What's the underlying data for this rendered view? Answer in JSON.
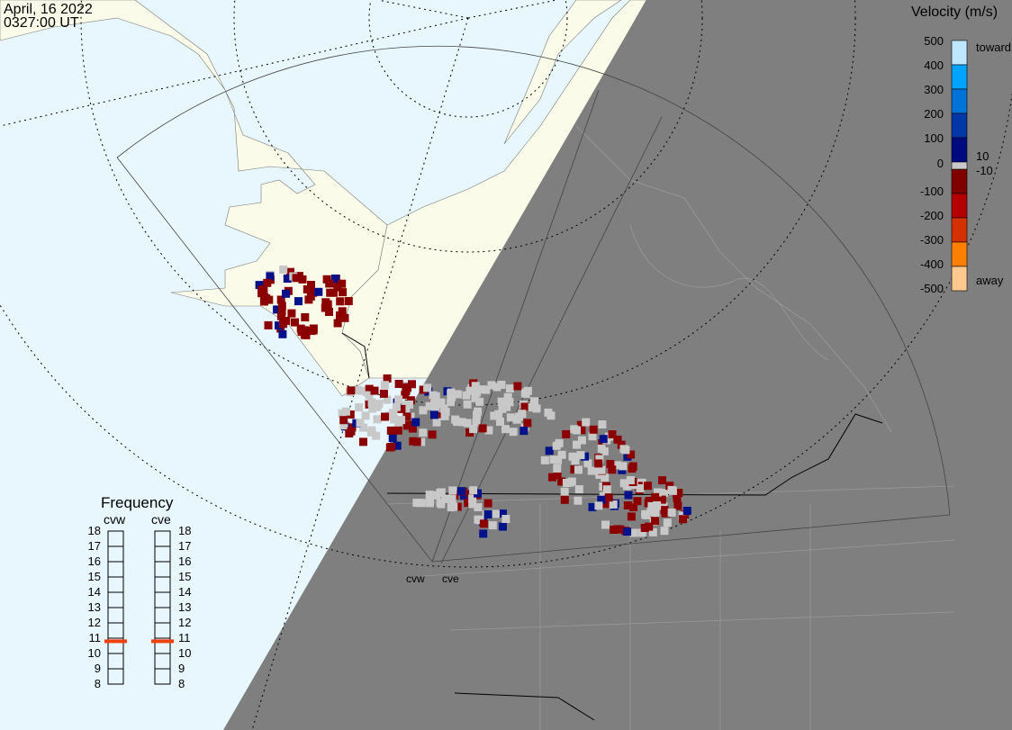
{
  "header": {
    "date": "April, 16 2022",
    "time": "0327:00 UT"
  },
  "colors": {
    "ocean": "#e8f6fe",
    "land": "#fbfbe9",
    "night": "#7f7f7f",
    "ground_scatter": "#c8c8c8",
    "freq_marker": "#f04010"
  },
  "radars": [
    {
      "code": "cvw"
    },
    {
      "code": "cve"
    }
  ],
  "velocity_scale": {
    "title": "Velocity (m/s)",
    "ticks": [
      "500",
      "400",
      "300",
      "200",
      "100",
      "0",
      "-100",
      "-200",
      "-300",
      "-400",
      "-500"
    ],
    "label_top": "toward",
    "label_bottom": "away",
    "label_pos": "10",
    "label_neg": "-10",
    "colors": [
      "#bfe6ff",
      "#00a4ff",
      "#0073d9",
      "#0038a8",
      "#000a7f",
      "#800000",
      "#b40000",
      "#d43000",
      "#ff8000",
      "#ffc890"
    ]
  },
  "frequency_panel": {
    "title": "Frequency",
    "ticks": [
      "18",
      "17",
      "16",
      "15",
      "14",
      "13",
      "12",
      "11",
      "10",
      "9",
      "8"
    ],
    "range_mhz": [
      8,
      18
    ],
    "cvw_mhz": 10.8,
    "cve_mhz": 10.8
  }
}
